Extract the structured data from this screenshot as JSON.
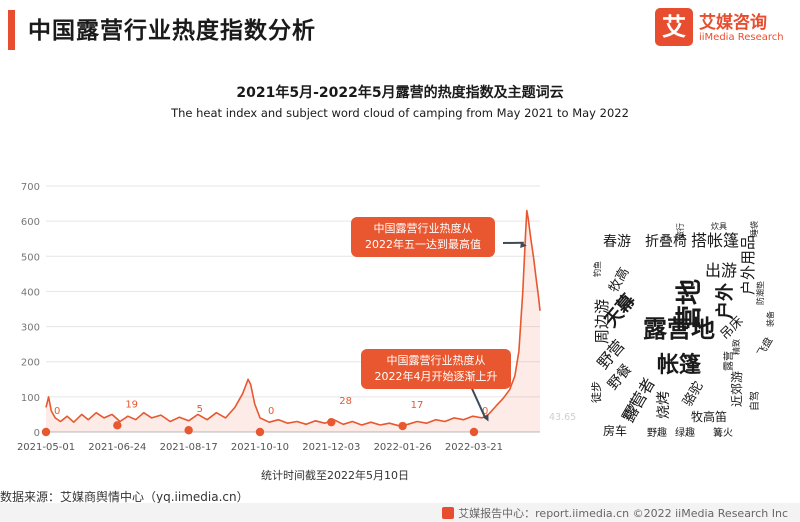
{
  "header": {
    "title": "中国露营行业热度指数分析",
    "logo_mark": "艾",
    "logo_cn": "艾媒咨询",
    "logo_en": "iiMedia Research"
  },
  "chart_heading": {
    "title": "2021年5月-2022年5月露营的热度指数及主题词云",
    "subtitle": "The heat index and subject word cloud of camping from May 2021 to May 2022"
  },
  "chart_data": {
    "type": "area",
    "x_ticks": [
      "2021-05-01",
      "2021-06-24",
      "2021-08-17",
      "2021-10-10",
      "2021-12-03",
      "2022-01-26",
      "2022-03-21"
    ],
    "x_range": [
      "2021-05-01",
      "2022-05-10"
    ],
    "ylim": [
      0,
      700
    ],
    "y_ticks": [
      0,
      100,
      200,
      300,
      400,
      500,
      600,
      700
    ],
    "grid": true,
    "color": "#e8572f",
    "series": [
      {
        "points": [
          [
            "2021-05-01",
            70
          ],
          [
            "2021-05-03",
            100
          ],
          [
            "2021-05-05",
            60
          ],
          [
            "2021-05-08",
            40
          ],
          [
            "2021-05-12",
            30
          ],
          [
            "2021-05-17",
            45
          ],
          [
            "2021-05-22",
            28
          ],
          [
            "2021-05-28",
            50
          ],
          [
            "2021-06-02",
            35
          ],
          [
            "2021-06-08",
            55
          ],
          [
            "2021-06-14",
            40
          ],
          [
            "2021-06-20",
            50
          ],
          [
            "2021-06-26",
            30
          ],
          [
            "2021-07-02",
            45
          ],
          [
            "2021-07-08",
            35
          ],
          [
            "2021-07-14",
            55
          ],
          [
            "2021-07-20",
            40
          ],
          [
            "2021-07-27",
            48
          ],
          [
            "2021-08-03",
            30
          ],
          [
            "2021-08-10",
            42
          ],
          [
            "2021-08-17",
            32
          ],
          [
            "2021-08-24",
            50
          ],
          [
            "2021-08-31",
            35
          ],
          [
            "2021-09-07",
            55
          ],
          [
            "2021-09-14",
            40
          ],
          [
            "2021-09-21",
            70
          ],
          [
            "2021-09-27",
            110
          ],
          [
            "2021-10-01",
            150
          ],
          [
            "2021-10-03",
            135
          ],
          [
            "2021-10-06",
            80
          ],
          [
            "2021-10-10",
            40
          ],
          [
            "2021-10-17",
            28
          ],
          [
            "2021-10-24",
            35
          ],
          [
            "2021-10-31",
            25
          ],
          [
            "2021-11-07",
            30
          ],
          [
            "2021-11-14",
            22
          ],
          [
            "2021-11-21",
            32
          ],
          [
            "2021-11-28",
            25
          ],
          [
            "2021-12-05",
            35
          ],
          [
            "2021-12-12",
            22
          ],
          [
            "2021-12-19",
            30
          ],
          [
            "2021-12-26",
            20
          ],
          [
            "2022-01-02",
            28
          ],
          [
            "2022-01-09",
            20
          ],
          [
            "2022-01-16",
            25
          ],
          [
            "2022-01-23",
            18
          ],
          [
            "2022-01-30",
            22
          ],
          [
            "2022-02-06",
            30
          ],
          [
            "2022-02-13",
            25
          ],
          [
            "2022-02-20",
            35
          ],
          [
            "2022-02-27",
            30
          ],
          [
            "2022-03-06",
            40
          ],
          [
            "2022-03-13",
            35
          ],
          [
            "2022-03-20",
            45
          ],
          [
            "2022-03-27",
            40
          ],
          [
            "2022-04-01",
            50
          ],
          [
            "2022-04-07",
            75
          ],
          [
            "2022-04-12",
            95
          ],
          [
            "2022-04-17",
            120
          ],
          [
            "2022-04-21",
            160
          ],
          [
            "2022-04-24",
            230
          ],
          [
            "2022-04-27",
            400
          ],
          [
            "2022-04-29",
            560
          ],
          [
            "2022-04-30",
            630
          ],
          [
            "2022-05-01",
            610
          ],
          [
            "2022-05-03",
            550
          ],
          [
            "2022-05-05",
            500
          ],
          [
            "2022-05-07",
            440
          ],
          [
            "2022-05-09",
            380
          ],
          [
            "2022-05-10",
            345
          ]
        ]
      }
    ],
    "markers": [
      {
        "date": "2021-05-01",
        "value": 0,
        "label": "0"
      },
      {
        "date": "2021-06-24",
        "value": 19,
        "label": "19"
      },
      {
        "date": "2021-08-17",
        "value": 5,
        "label": "5"
      },
      {
        "date": "2021-10-10",
        "value": 0,
        "label": "0"
      },
      {
        "date": "2021-12-03",
        "value": 28,
        "label": "28"
      },
      {
        "date": "2022-01-26",
        "value": 17,
        "label": "17"
      },
      {
        "date": "2022-03-21",
        "value": 0,
        "label": "0"
      }
    ],
    "end_value_label": "43.65",
    "annotations": [
      {
        "text": "中国露营行业热度从2022年五一达到最高值",
        "date": "2022-04-30",
        "value": 530
      },
      {
        "text": "中国露营行业热度从2022年4月开始逐渐上升",
        "date": "2022-04-01",
        "value": 30
      }
    ]
  },
  "callouts": {
    "peak_line1": "中国露营行业热度从",
    "peak_line2": "2022年五一达到最高值",
    "rise_line1": "中国露营行业热度从",
    "rise_line2": "2022年4月开始逐渐上升"
  },
  "word_cloud": [
    {
      "text": "春游",
      "size": 14,
      "rotate": 0
    },
    {
      "text": "折叠椅",
      "size": 14,
      "rotate": 0
    },
    {
      "text": "搭帐篷",
      "size": 16,
      "rotate": 0
    },
    {
      "text": "露营地",
      "size": 24,
      "rotate": 0
    },
    {
      "text": "营地",
      "size": 26,
      "rotate": -90
    },
    {
      "text": "户外",
      "size": 18,
      "rotate": -90
    },
    {
      "text": "出游",
      "size": 16,
      "rotate": 0
    },
    {
      "text": "帐篷",
      "size": 22,
      "rotate": 0
    },
    {
      "text": "天幕",
      "size": 18,
      "rotate": -50
    },
    {
      "text": "周边游",
      "size": 15,
      "rotate": -90
    },
    {
      "text": "牧高",
      "size": 13,
      "rotate": -60
    },
    {
      "text": "户外用品",
      "size": 15,
      "rotate": -90
    },
    {
      "text": "吊床",
      "size": 13,
      "rotate": -45
    },
    {
      "text": "野营",
      "size": 16,
      "rotate": -50
    },
    {
      "text": "野餐",
      "size": 14,
      "rotate": -50
    },
    {
      "text": "露营者",
      "size": 16,
      "rotate": -60
    },
    {
      "text": "烧烤",
      "size": 14,
      "rotate": -90
    },
    {
      "text": "房车",
      "size": 12,
      "rotate": 0
    },
    {
      "text": "野趣",
      "size": 10,
      "rotate": 0
    },
    {
      "text": "绿趣",
      "size": 10,
      "rotate": 0
    },
    {
      "text": "篝火",
      "size": 10,
      "rotate": 0
    },
    {
      "text": "牧高笛",
      "size": 12,
      "rotate": 0
    },
    {
      "text": "骆驼",
      "size": 13,
      "rotate": -60
    },
    {
      "text": "近郊游",
      "size": 12,
      "rotate": -90
    },
    {
      "text": "徒步",
      "size": 11,
      "rotate": -90
    },
    {
      "text": "野外",
      "size": 11,
      "rotate": -60
    },
    {
      "text": "自驾",
      "size": 10,
      "rotate": -90
    },
    {
      "text": "飞盘",
      "size": 10,
      "rotate": -60
    },
    {
      "text": "露营",
      "size": 10,
      "rotate": -90
    },
    {
      "text": "旅行",
      "size": 8,
      "rotate": -90
    },
    {
      "text": "炊具",
      "size": 8,
      "rotate": 0
    },
    {
      "text": "睡袋",
      "size": 8,
      "rotate": -90
    },
    {
      "text": "钓鱼",
      "size": 8,
      "rotate": -90
    },
    {
      "text": "防潮垫",
      "size": 8,
      "rotate": -90
    },
    {
      "text": "精致",
      "size": 8,
      "rotate": -90
    },
    {
      "text": "装备",
      "size": 8,
      "rotate": -90
    }
  ],
  "note": "统计时间截至2022年5月10日",
  "source": "数据来源：艾媒商舆情中心（yq.iimedia.cn）",
  "footer": {
    "text": "艾媒报告中心：report.iimedia.cn   ©2022  iiMedia Research  Inc"
  }
}
